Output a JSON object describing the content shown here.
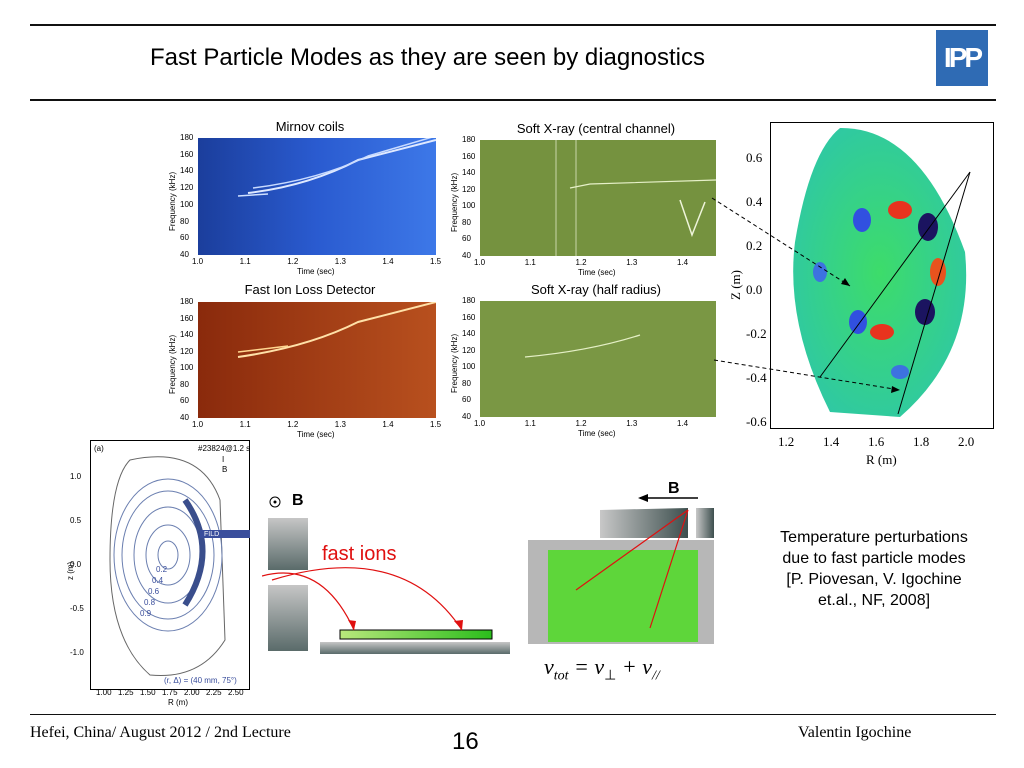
{
  "slide": {
    "title": "Fast Particle Modes as they are seen by diagnostics",
    "logo_text": "IPP",
    "accent": "#2f6bb4"
  },
  "panels": {
    "mirnov": {
      "title": "Mirnov coils",
      "ylabel": "Frequency (kHz)",
      "xlabel": "Time (sec)",
      "yticks": [
        "180",
        "160",
        "140",
        "120",
        "100",
        "80",
        "60",
        "40"
      ],
      "xticks": [
        "1.0",
        "1.1",
        "1.2",
        "1.3",
        "1.4",
        "1.5"
      ]
    },
    "sxr_central": {
      "title": "Soft X-ray (central channel)",
      "ylabel": "Frequency (kHz)",
      "xlabel": "Time (sec)",
      "yticks": [
        "180",
        "160",
        "140",
        "120",
        "100",
        "80",
        "60",
        "40"
      ],
      "xticks": [
        "1.0",
        "1.1",
        "1.2",
        "1.3",
        "1.4"
      ]
    },
    "fild": {
      "title": "Fast Ion Loss Detector",
      "ylabel": "Frequency (kHz)",
      "xlabel": "Time (sec)",
      "yticks": [
        "180",
        "160",
        "140",
        "120",
        "100",
        "80",
        "60",
        "40"
      ],
      "xticks": [
        "1.0",
        "1.1",
        "1.2",
        "1.3",
        "1.4",
        "1.5"
      ]
    },
    "sxr_half": {
      "title": "Soft X-ray (half radius)",
      "ylabel": "Frequency (kHz)",
      "xlabel": "Time (sec)",
      "yticks": [
        "180",
        "160",
        "140",
        "120",
        "100",
        "80",
        "60",
        "40"
      ],
      "xticks": [
        "1.0",
        "1.1",
        "1.2",
        "1.3",
        "1.4"
      ]
    }
  },
  "tomography": {
    "ylabel": "Z (m)",
    "xlabel": "R (m)",
    "yticks": [
      "0.6",
      "0.4",
      "0.2",
      "0.0",
      "-0.2",
      "-0.4",
      "-0.6"
    ],
    "xticks": [
      "1.2",
      "1.4",
      "1.6",
      "1.8",
      "2.0"
    ]
  },
  "equilibrium": {
    "panel_label": "(a)",
    "shot": "#23824@1.2 s",
    "ip_label": "I",
    "bt_label": "B",
    "ylabel": "z (m)",
    "xlabel": "R (m)",
    "yticks": [
      "1.0",
      "0.5",
      "0.0",
      "-0.5",
      "-1.0"
    ],
    "xticks": [
      "1.00",
      "1.25",
      "1.50",
      "1.75",
      "2.00",
      "2.25",
      "2.50"
    ],
    "flux_labels": [
      "0.2",
      "0.4",
      "0.6",
      "0.8",
      "0.9"
    ],
    "fild_label": "FILD",
    "position_note": "(r, Δ) = (40 mm, 75°)"
  },
  "schematic": {
    "b_label_left": "B",
    "fast_ions": "fast ions",
    "b_label_right": "B",
    "formula": {
      "lhs": "v",
      "lhs_sub": "tot",
      "eq": " = v",
      "perp": "⊥",
      "plus": " + v",
      "par": "//"
    }
  },
  "caption": {
    "lines": [
      "Temperature perturbations",
      "due to fast particle modes",
      "[P. Piovesan, V. Igochine",
      "et.al., NF, 2008]"
    ]
  },
  "footer": {
    "left": "Hefei, China/ August 2012 / 2nd Lecture",
    "page": "16",
    "right": "Valentin Igochine"
  }
}
